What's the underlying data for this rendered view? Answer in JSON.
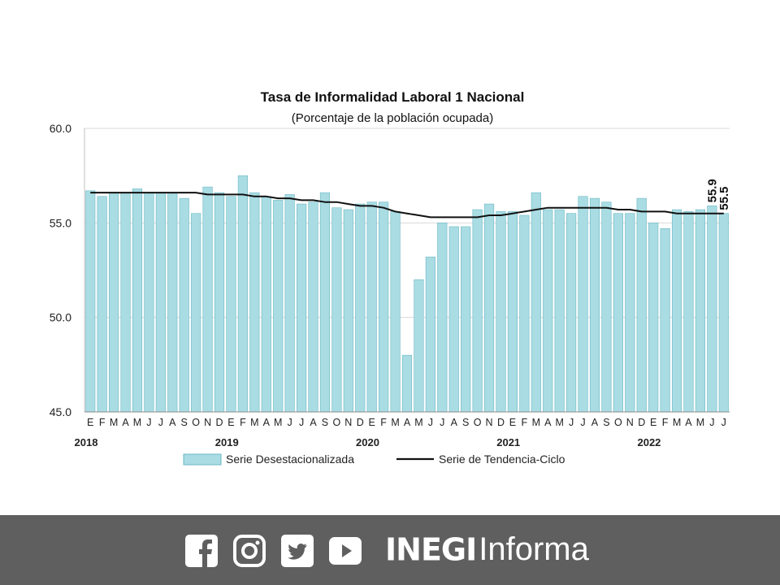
{
  "chart_data": {
    "type": "bar",
    "title": "Tasa de Informalidad Laboral 1 Nacional",
    "subtitle": "(Porcentaje de la población ocupada)",
    "ylim": [
      45,
      60
    ],
    "yticks": [
      "45.0",
      "50.0",
      "55.0",
      "60.0"
    ],
    "grid": true,
    "month_labels": [
      "E",
      "F",
      "M",
      "A",
      "M",
      "J",
      "J",
      "A",
      "S",
      "O",
      "N",
      "D",
      "E",
      "F",
      "M",
      "A",
      "M",
      "J",
      "J",
      "A",
      "S",
      "O",
      "N",
      "D",
      "E",
      "F",
      "M",
      "A",
      "M",
      "J",
      "J",
      "A",
      "S",
      "O",
      "N",
      "D",
      "E",
      "F",
      "M",
      "A",
      "M",
      "J",
      "J",
      "A",
      "S",
      "O",
      "N",
      "D",
      "E",
      "F",
      "M",
      "A",
      "M",
      "J",
      "J"
    ],
    "year_labels": [
      {
        "label": "2018",
        "index": 0
      },
      {
        "label": "2019",
        "index": 12
      },
      {
        "label": "2020",
        "index": 24
      },
      {
        "label": "2021",
        "index": 36
      },
      {
        "label": "2022",
        "index": 48
      }
    ],
    "series": [
      {
        "name": "Serie Desestacionalizada",
        "type": "bar",
        "color": "#a9dce3",
        "values": [
          56.7,
          56.4,
          56.6,
          56.6,
          56.8,
          56.6,
          56.6,
          56.6,
          56.3,
          55.5,
          56.9,
          56.6,
          56.4,
          57.5,
          56.6,
          56.4,
          56.2,
          56.5,
          56.0,
          56.1,
          56.6,
          55.8,
          55.7,
          56.0,
          56.1,
          56.1,
          55.6,
          48.0,
          52.0,
          53.2,
          55.0,
          54.8,
          54.8,
          55.7,
          56.0,
          55.6,
          55.6,
          55.4,
          56.6,
          55.7,
          55.7,
          55.5,
          56.4,
          56.3,
          56.1,
          55.5,
          55.5,
          56.3,
          55.0,
          54.7,
          55.7,
          55.6,
          55.7,
          55.9,
          55.5
        ]
      },
      {
        "name": "Serie de Tendencia-Ciclo",
        "type": "line",
        "color": "#111111",
        "values": [
          56.6,
          56.6,
          56.6,
          56.6,
          56.6,
          56.6,
          56.6,
          56.6,
          56.6,
          56.6,
          56.5,
          56.5,
          56.5,
          56.5,
          56.4,
          56.4,
          56.3,
          56.3,
          56.2,
          56.2,
          56.1,
          56.1,
          56.0,
          55.9,
          55.9,
          55.8,
          55.6,
          55.5,
          55.4,
          55.3,
          55.3,
          55.3,
          55.3,
          55.3,
          55.4,
          55.4,
          55.5,
          55.6,
          55.7,
          55.8,
          55.8,
          55.8,
          55.8,
          55.8,
          55.8,
          55.7,
          55.7,
          55.6,
          55.6,
          55.6,
          55.5,
          55.5,
          55.5,
          55.5,
          55.5
        ]
      }
    ],
    "annotations": [
      {
        "text": "55.9",
        "index": 53
      },
      {
        "text": "55.5",
        "index": 54
      }
    ],
    "legend": {
      "position": "bottom"
    }
  },
  "footer": {
    "social_icons": [
      "facebook-icon",
      "instagram-icon",
      "twitter-icon",
      "youtube-icon"
    ],
    "brand_bold": "INEGI",
    "brand_light": "Informa",
    "background": "#5f5f5f"
  }
}
